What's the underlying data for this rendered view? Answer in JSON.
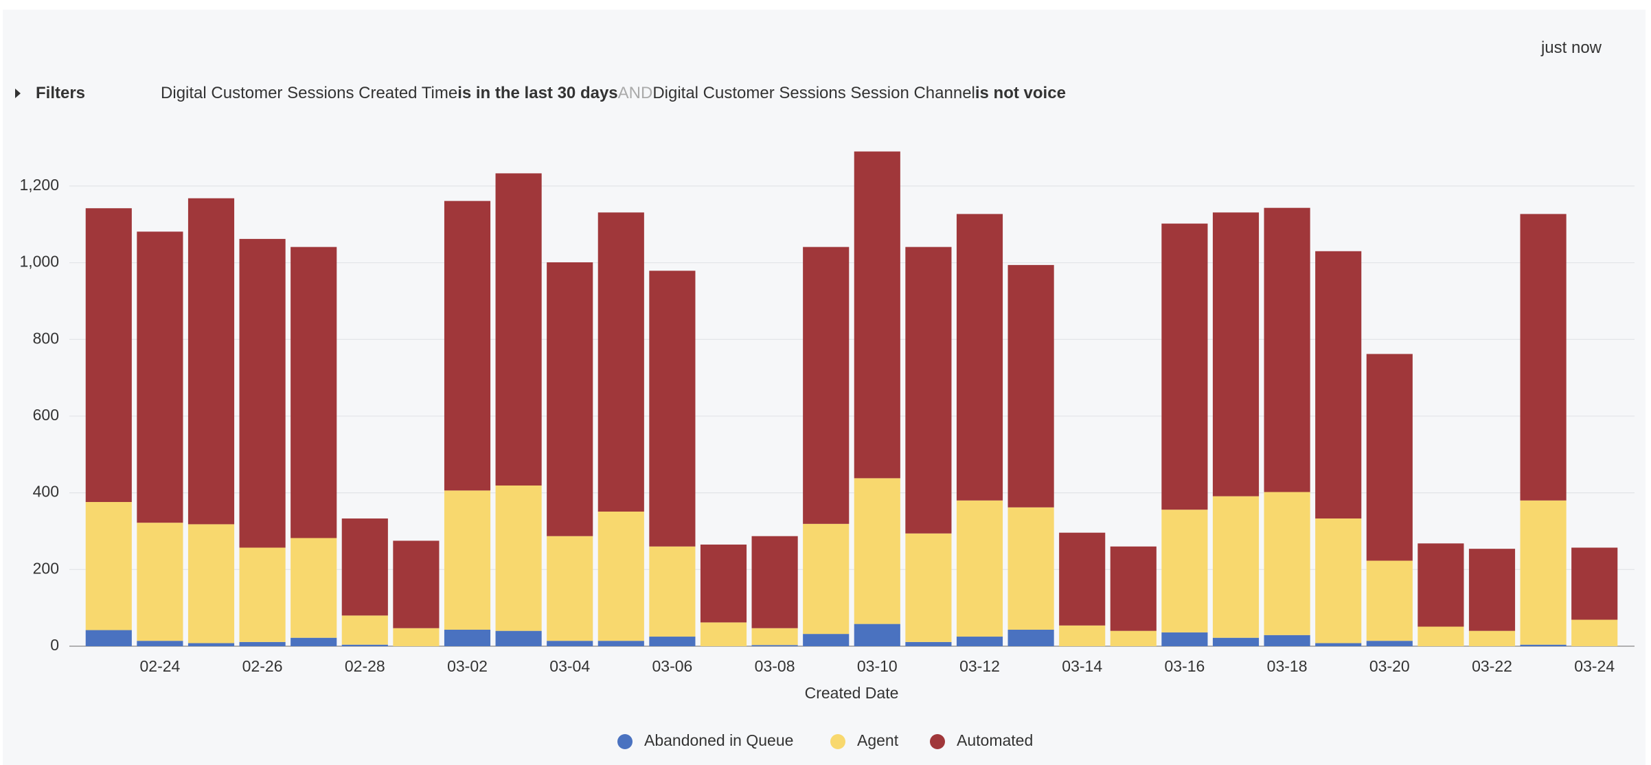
{
  "timestamp": "just now",
  "filters": {
    "label": "Filters",
    "conditions": [
      {
        "field": "Digital Customer Sessions Created Time",
        "operator": "is in the last 30 days"
      },
      {
        "field": "Digital Customer Sessions Session Channel",
        "operator": "is not voice"
      }
    ],
    "conjunction": "AND"
  },
  "chart_data": {
    "type": "stacked_bar",
    "x_label": "Created Date",
    "categories": [
      null,
      "02-24",
      null,
      "02-26",
      null,
      "02-28",
      null,
      "03-02",
      null,
      "03-04",
      null,
      "03-06",
      null,
      "03-08",
      null,
      "03-10",
      null,
      "03-12",
      null,
      "03-14",
      null,
      "03-16",
      null,
      "03-18",
      null,
      "03-20",
      null,
      "03-22",
      null,
      "03-24"
    ],
    "series": [
      {
        "name": "Abandoned in Queue",
        "color": "#4a72c0",
        "values": [
          42,
          14,
          8,
          11,
          22,
          4,
          0,
          43,
          40,
          14,
          14,
          25,
          0,
          3,
          32,
          58,
          11,
          25,
          43,
          0,
          0,
          36,
          22,
          29,
          8,
          14,
          0,
          0,
          4,
          0
        ]
      },
      {
        "name": "Agent",
        "color": "#f8d86e",
        "values": [
          334,
          308,
          310,
          246,
          260,
          76,
          47,
          363,
          379,
          273,
          337,
          235,
          62,
          44,
          287,
          380,
          283,
          355,
          319,
          54,
          40,
          320,
          369,
          373,
          325,
          209,
          51,
          40,
          376,
          69
        ]
      },
      {
        "name": "Automated",
        "color": "#a0373a",
        "values": [
          766,
          759,
          850,
          805,
          759,
          253,
          228,
          755,
          814,
          714,
          780,
          719,
          203,
          240,
          722,
          852,
          747,
          747,
          632,
          242,
          220,
          746,
          740,
          741,
          697,
          539,
          217,
          214,
          747,
          188
        ]
      }
    ],
    "ylim": [
      0,
      1300
    ],
    "yticks": [
      0,
      200,
      400,
      600,
      800,
      {
        "value": 1000,
        "label": "1,000"
      },
      {
        "value": 1200,
        "label": "1,200"
      }
    ],
    "grid": true,
    "legend": "bottom"
  }
}
